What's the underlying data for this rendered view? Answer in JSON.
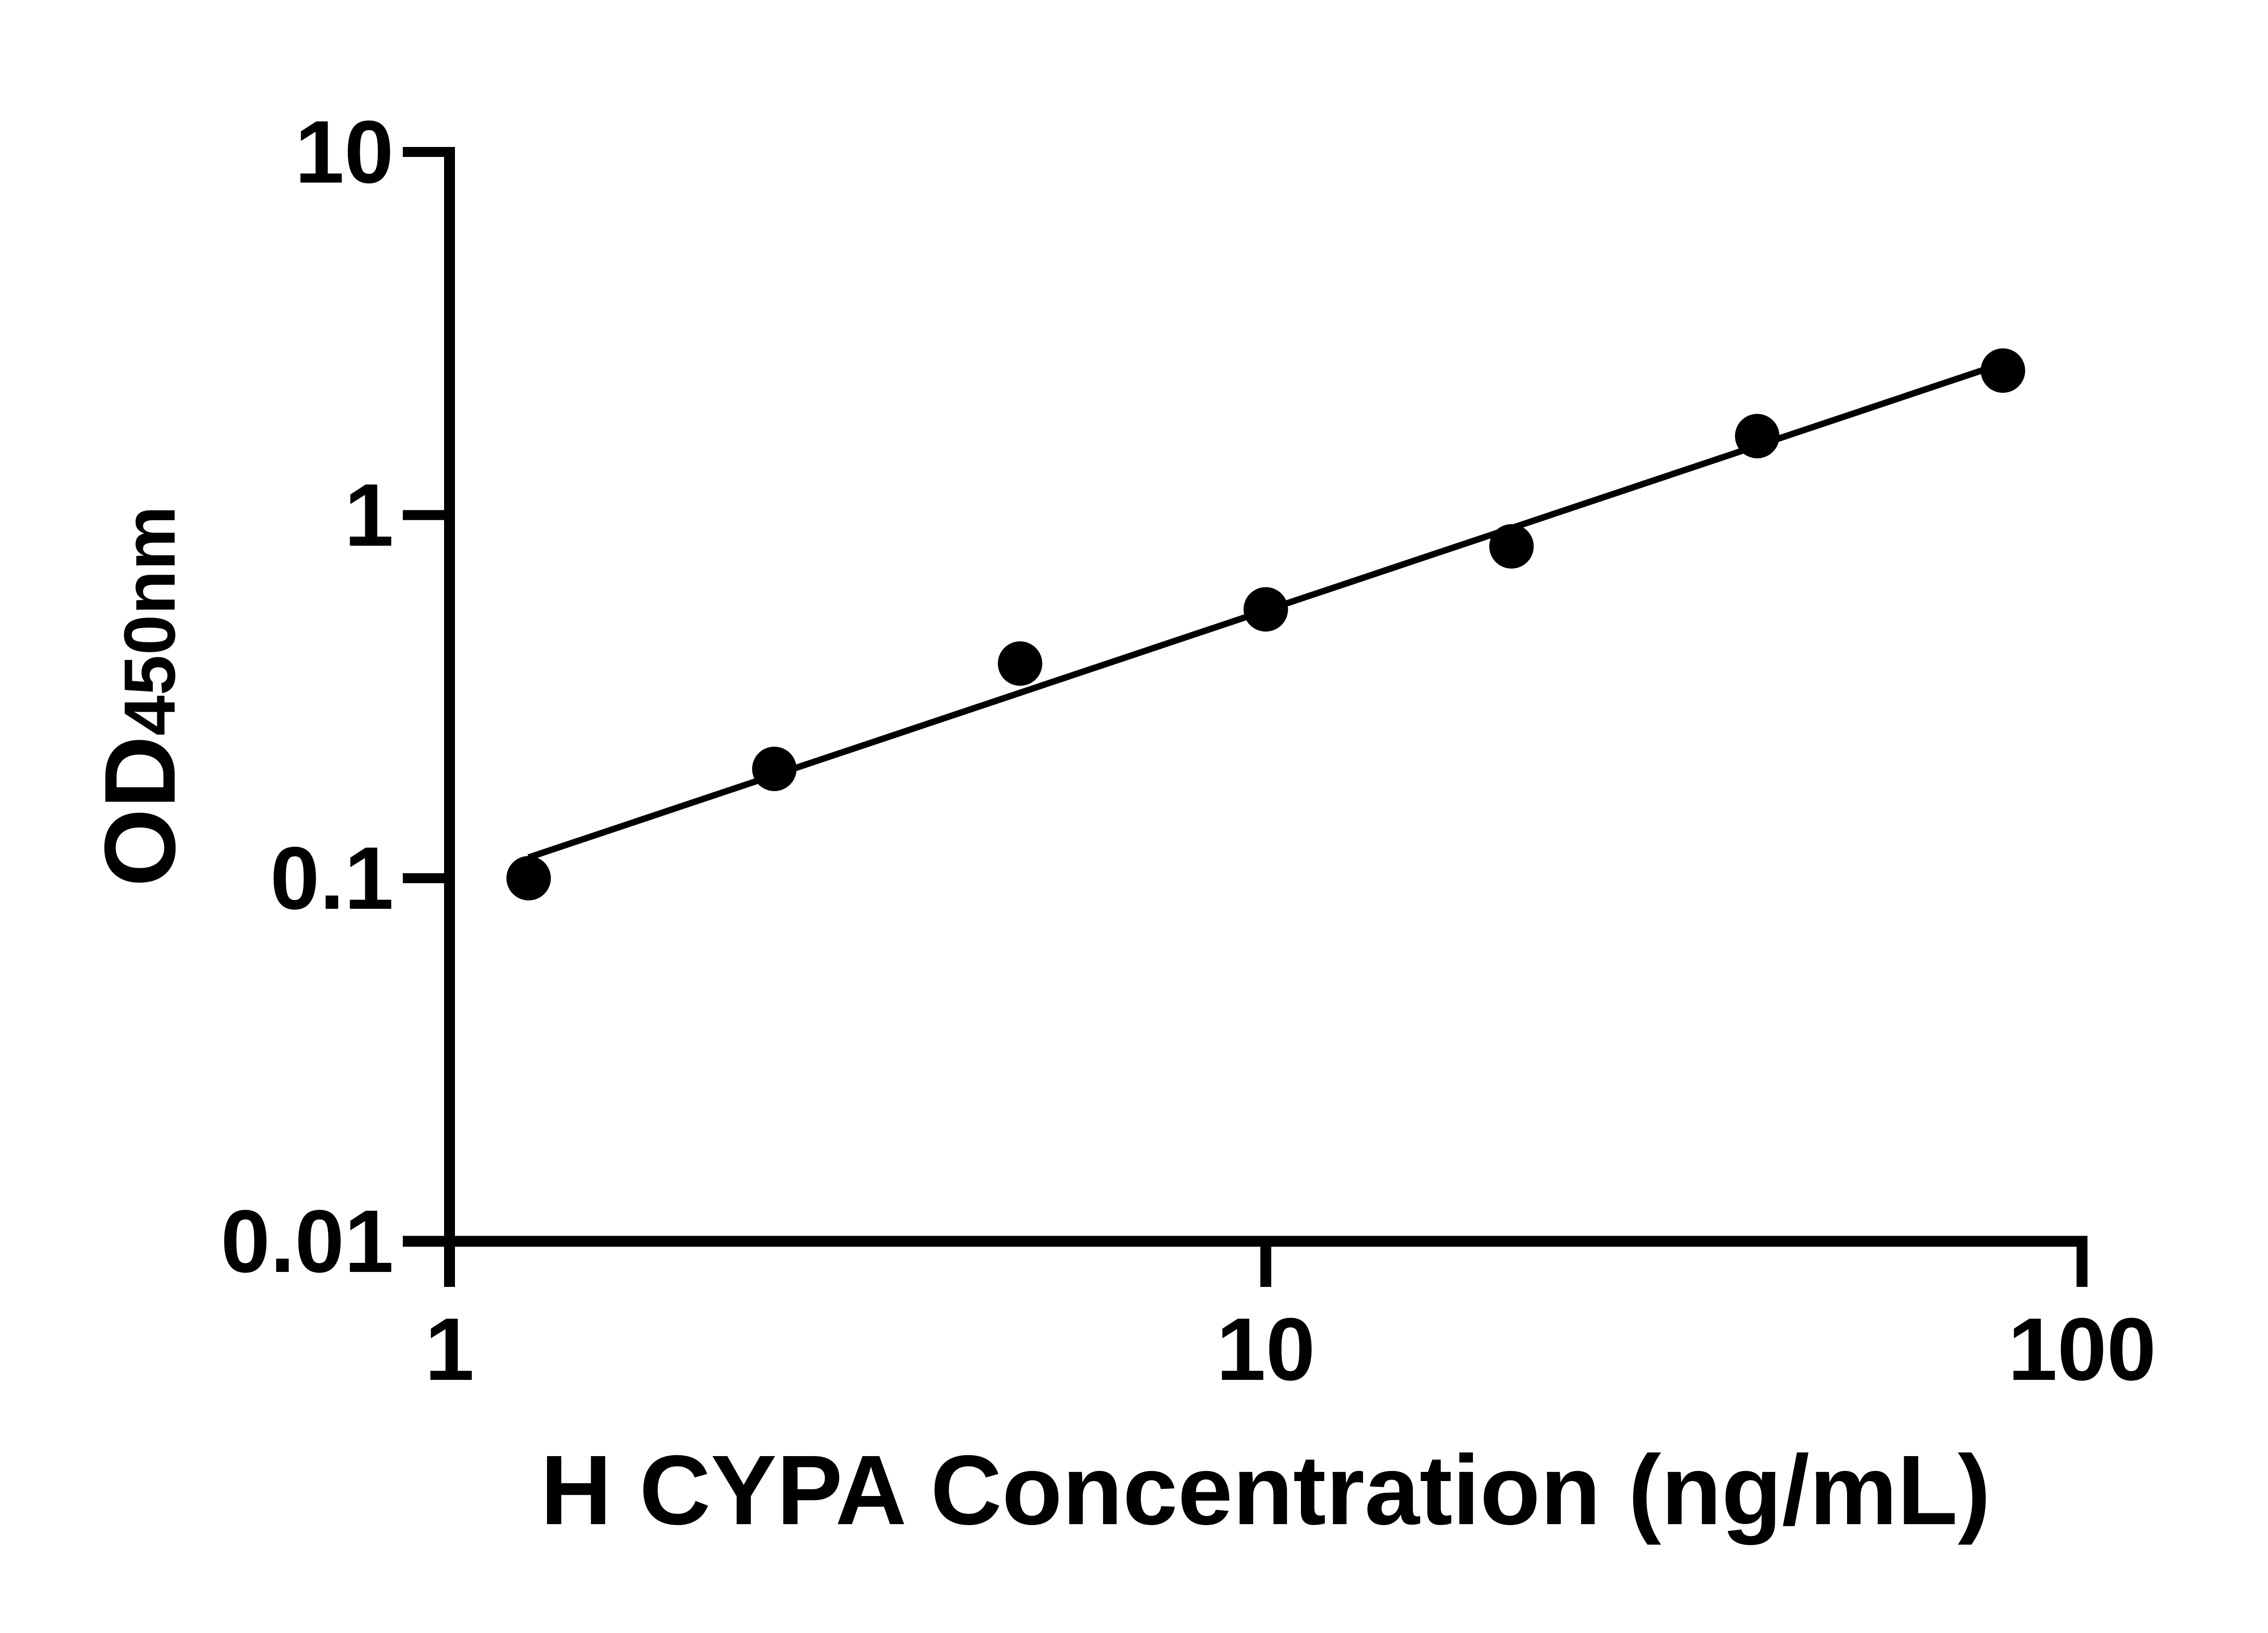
{
  "figure": {
    "background": "#ffffff"
  },
  "chart_data": {
    "type": "scatter",
    "title": "",
    "xlabel": "H CYPA Concentration (ng/mL)",
    "ylabel_main": "OD",
    "ylabel_sub": "450nm",
    "x": [
      1.25,
      2.5,
      5,
      10,
      20,
      40,
      80
    ],
    "y": [
      0.1,
      0.2,
      0.39,
      0.55,
      0.82,
      1.65,
      2.5
    ],
    "xscale": "log",
    "yscale": "log",
    "xlim": [
      1,
      100
    ],
    "ylim": [
      0.01,
      10
    ],
    "xticks": {
      "values": [
        1,
        10,
        100
      ],
      "labels": [
        "1",
        "10",
        "100"
      ]
    },
    "yticks": {
      "values": [
        0.01,
        0.1,
        1,
        10
      ],
      "labels": [
        "0.01",
        "0.1",
        "1",
        "10"
      ]
    },
    "grid": false,
    "legend": null,
    "marker": {
      "shape": "circle",
      "color": "#000000"
    },
    "fit_line": {
      "kind": "power-regression",
      "x_range": [
        1.25,
        80
      ],
      "color": "#000000"
    },
    "axis_color": "#000000"
  }
}
